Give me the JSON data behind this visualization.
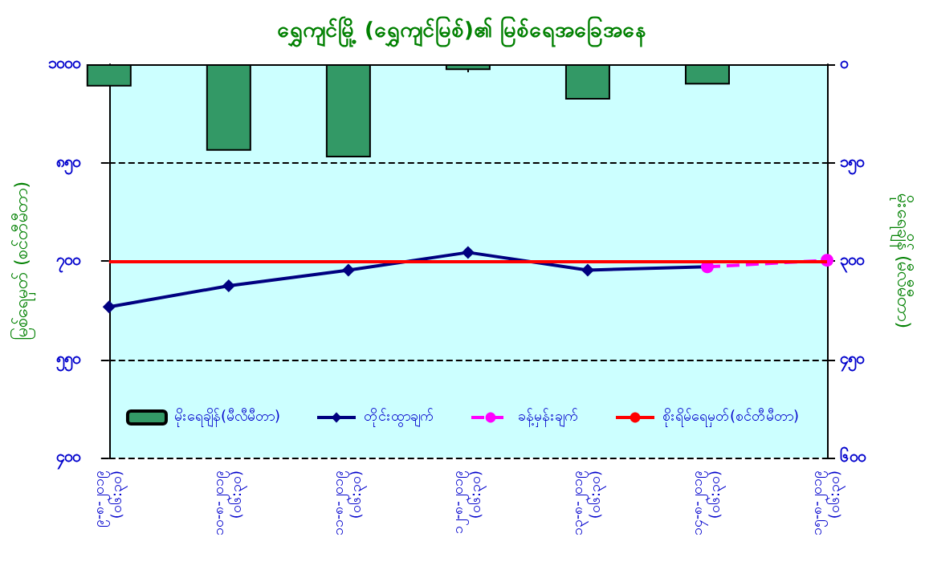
{
  "chart_data": {
    "type": "line",
    "title": "ရွှေကျင်မြို့ (ရွှေကျင်မြစ်)၏ မြစ်ရေအခြေအနေ",
    "ylabel": "မြစ်ရေမှတ် (စင်တီမီတာ)",
    "y2label": "မိုးရေချိန် (မီလီမီတာ)",
    "categories": [
      "၉-၈-၂၀၁၉\n(၀၆:၃၀)",
      "၁၀-၈-၂၀၁၉\n(၀၆:၃၀)",
      "၁၁-၈-၂၀၁၉\n(၀၆:၃၀)",
      "၁၂-၈-၂၀၁၉\n(၀၆:၃၀)",
      "၁၃-၈-၂၀၁၉\n(၀၆:၃၀)",
      "၁၄-၈-၂၀၁၉\n(၀၆:၃၀)",
      "၁၅-၈-၂၀၁၉\n(၀၆:၃၀)"
    ],
    "series": [
      {
        "name": "မိုးရေချိန်(မီလီမီတာ)",
        "type": "bar",
        "axis": "y2",
        "color": "#339966",
        "values": [
          34,
          132,
          142,
          9,
          54,
          31,
          null
        ]
      },
      {
        "name": "တိုင်းထွာချက်",
        "color": "#000080",
        "marker": "diamond",
        "line_style": "solid",
        "values": [
          630,
          662,
          686,
          713,
          686,
          691,
          null
        ]
      },
      {
        "name": "ခန့်မှန်းချက်",
        "color": "#ff00ff",
        "marker": "circle",
        "line_style": "dashed",
        "values": [
          null,
          null,
          null,
          null,
          null,
          691,
          701
        ]
      }
    ],
    "ref_lines": [
      {
        "axis": "y",
        "value": 700,
        "label": "စိုးရိမ်ရေမှတ်(စင်တီမီတာ)",
        "color": "#ff0000",
        "line_style": "solid"
      }
    ],
    "ylim": [
      400,
      1000
    ],
    "yticks": [
      {
        "value": 400,
        "label": "၄၀၀"
      },
      {
        "value": 550,
        "label": "၅၅၀"
      },
      {
        "value": 700,
        "label": "၇၀၀"
      },
      {
        "value": 850,
        "label": "၈၅၀"
      },
      {
        "value": 1000,
        "label": "၁၀၀၀"
      }
    ],
    "y2lim": [
      600,
      0
    ],
    "y2ticks": [
      {
        "value": 0,
        "label": "၀"
      },
      {
        "value": 150,
        "label": "၁၅၀"
      },
      {
        "value": 300,
        "label": "၃၀၀"
      },
      {
        "value": 450,
        "label": "၄၅၀"
      },
      {
        "value": 600,
        "label": "၆၀၀"
      }
    ],
    "grid": "y",
    "legend": "bottom"
  }
}
